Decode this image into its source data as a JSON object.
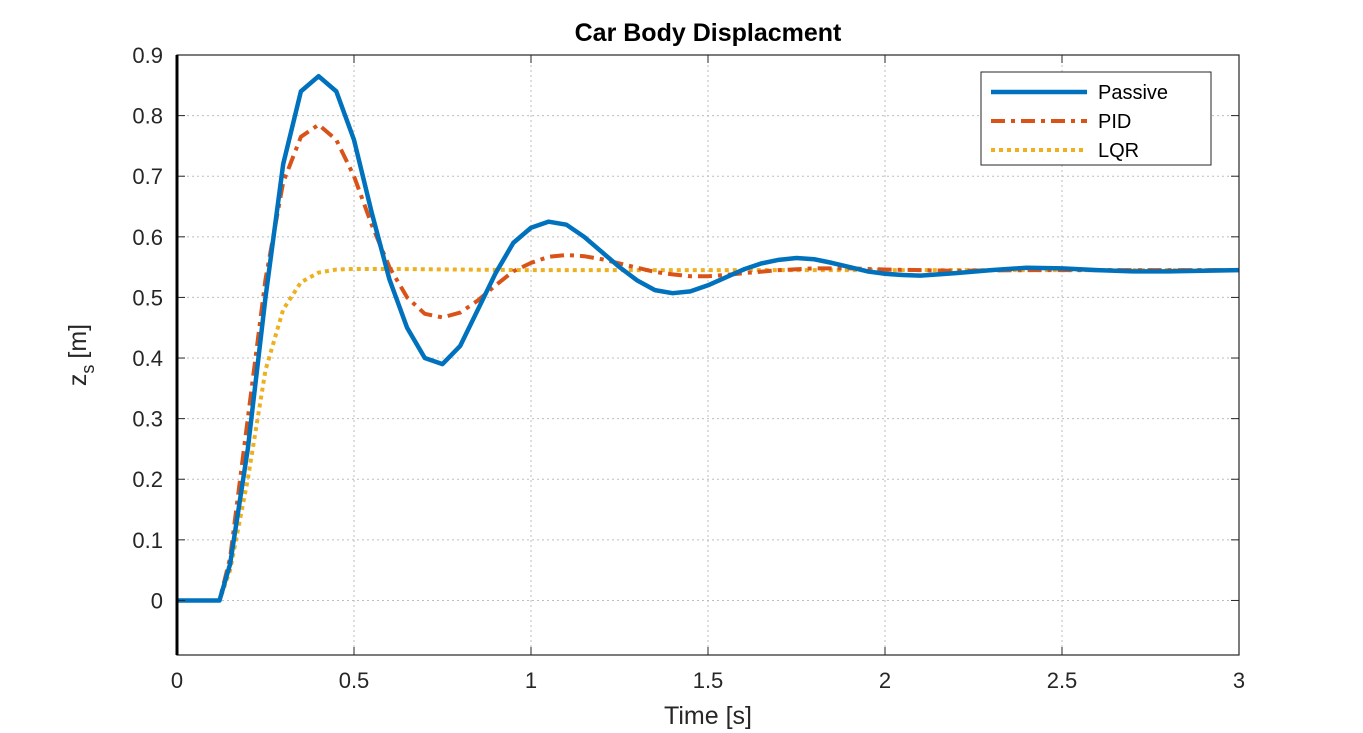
{
  "chart_data": {
    "type": "line",
    "title": "Car Body Displacment",
    "xlabel": "Time [s]",
    "ylabel_main": "z",
    "ylabel_sub": "s",
    "ylabel_unit": "[m]",
    "xlim": [
      0,
      3
    ],
    "ylim": [
      -0.09,
      0.9
    ],
    "x_ticks": [
      0,
      0.5,
      1,
      1.5,
      2,
      2.5,
      3
    ],
    "x_tick_labels": [
      "0",
      "0.5",
      "1",
      "1.5",
      "2",
      "2.5",
      "3"
    ],
    "y_ticks": [
      0,
      0.1,
      0.2,
      0.3,
      0.4,
      0.5,
      0.6,
      0.7,
      0.8,
      0.9
    ],
    "y_tick_labels": [
      "0",
      "0.1",
      "0.2",
      "0.3",
      "0.4",
      "0.5",
      "0.6",
      "0.7",
      "0.8",
      "0.9"
    ],
    "grid": true,
    "legend_position": "top-right",
    "series": [
      {
        "name": "Passive",
        "color": "#0072BD",
        "style": "solid",
        "x": [
          0,
          0.12,
          0.15,
          0.2,
          0.25,
          0.3,
          0.35,
          0.4,
          0.45,
          0.5,
          0.55,
          0.6,
          0.65,
          0.7,
          0.75,
          0.8,
          0.85,
          0.9,
          0.95,
          1.0,
          1.05,
          1.1,
          1.15,
          1.2,
          1.25,
          1.3,
          1.35,
          1.4,
          1.45,
          1.5,
          1.55,
          1.6,
          1.65,
          1.7,
          1.75,
          1.8,
          1.85,
          1.9,
          1.95,
          2.0,
          2.05,
          2.1,
          2.15,
          2.2,
          2.3,
          2.4,
          2.5,
          2.6,
          2.7,
          2.8,
          3.0
        ],
        "y": [
          0,
          0,
          0.06,
          0.25,
          0.5,
          0.72,
          0.84,
          0.865,
          0.84,
          0.76,
          0.64,
          0.53,
          0.45,
          0.4,
          0.39,
          0.42,
          0.48,
          0.54,
          0.59,
          0.615,
          0.625,
          0.62,
          0.6,
          0.575,
          0.55,
          0.528,
          0.512,
          0.507,
          0.51,
          0.52,
          0.533,
          0.546,
          0.556,
          0.562,
          0.565,
          0.563,
          0.557,
          0.55,
          0.543,
          0.539,
          0.537,
          0.536,
          0.538,
          0.54,
          0.545,
          0.549,
          0.548,
          0.545,
          0.543,
          0.543,
          0.545
        ]
      },
      {
        "name": "PID",
        "color": "#D95319",
        "style": "dashdot",
        "x": [
          0,
          0.12,
          0.15,
          0.2,
          0.25,
          0.3,
          0.35,
          0.4,
          0.45,
          0.5,
          0.55,
          0.6,
          0.65,
          0.7,
          0.75,
          0.8,
          0.85,
          0.9,
          0.95,
          1.0,
          1.05,
          1.1,
          1.15,
          1.2,
          1.25,
          1.3,
          1.35,
          1.4,
          1.45,
          1.5,
          1.55,
          1.6,
          1.7,
          1.8,
          1.9,
          2.0,
          2.2,
          2.4,
          2.6,
          2.8,
          3.0
        ],
        "y": [
          0,
          0,
          0.07,
          0.3,
          0.53,
          0.69,
          0.765,
          0.785,
          0.76,
          0.7,
          0.62,
          0.55,
          0.5,
          0.473,
          0.467,
          0.475,
          0.495,
          0.52,
          0.543,
          0.557,
          0.567,
          0.57,
          0.568,
          0.563,
          0.556,
          0.549,
          0.542,
          0.538,
          0.535,
          0.535,
          0.537,
          0.54,
          0.545,
          0.548,
          0.548,
          0.546,
          0.544,
          0.545,
          0.545,
          0.545,
          0.545
        ]
      },
      {
        "name": "LQR",
        "color": "#EDB120",
        "style": "dotted",
        "x": [
          0,
          0.12,
          0.15,
          0.2,
          0.25,
          0.3,
          0.35,
          0.4,
          0.45,
          0.5,
          0.6,
          0.8,
          1.0,
          1.5,
          2.0,
          2.5,
          3.0
        ],
        "y": [
          0,
          0,
          0.05,
          0.2,
          0.38,
          0.48,
          0.525,
          0.541,
          0.546,
          0.547,
          0.547,
          0.546,
          0.545,
          0.545,
          0.545,
          0.545,
          0.545
        ]
      }
    ]
  }
}
